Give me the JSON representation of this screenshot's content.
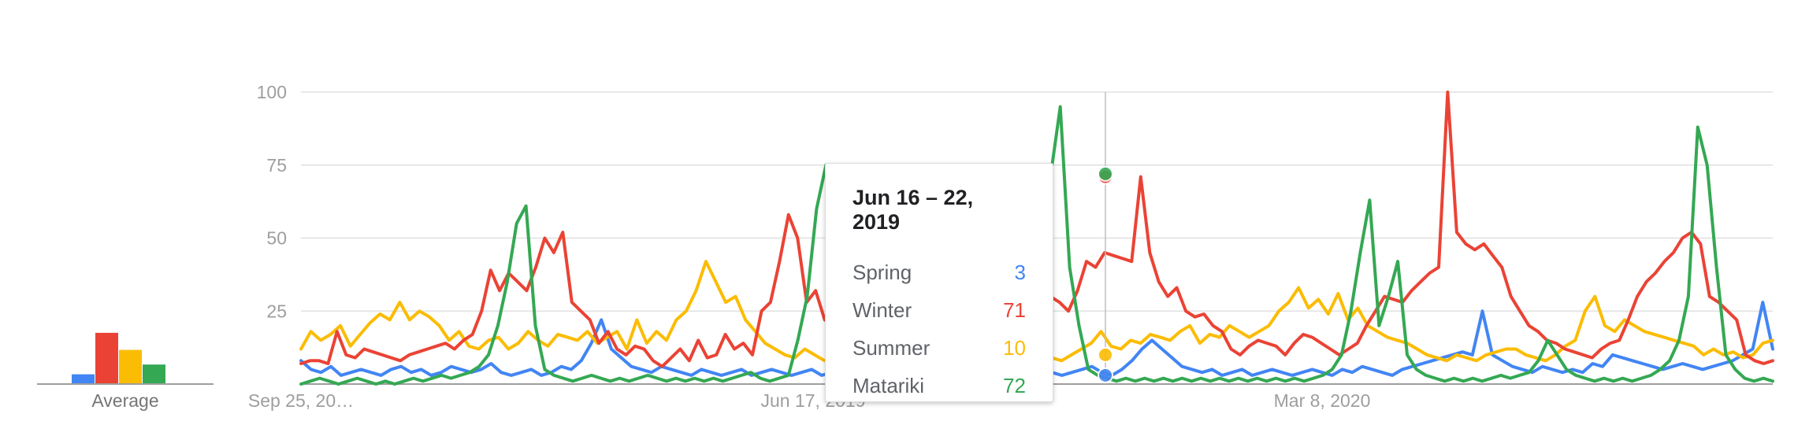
{
  "chart_data": {
    "type": "line",
    "x_ticks": [
      "Sep 25, 20…",
      "Jun 17, 2019",
      "Mar 8, 2020"
    ],
    "y_ticks": [
      100,
      75,
      50,
      25
    ],
    "ylim": [
      0,
      100
    ],
    "grid": true,
    "average": {
      "label": "Average",
      "values": [
        4,
        21,
        14,
        8
      ]
    },
    "series": [
      {
        "name": "Spring",
        "color": "#4285f4",
        "values": [
          8,
          5,
          4,
          6,
          3,
          4,
          5,
          4,
          3,
          5,
          6,
          4,
          5,
          3,
          4,
          6,
          5,
          4,
          5,
          7,
          4,
          3,
          4,
          5,
          3,
          4,
          6,
          5,
          8,
          14,
          22,
          12,
          9,
          6,
          5,
          4,
          6,
          5,
          4,
          3,
          5,
          4,
          3,
          4,
          5,
          3,
          4,
          5,
          4,
          3,
          4,
          5,
          3,
          4,
          5,
          4,
          6,
          5,
          4,
          3,
          5,
          6,
          4,
          5,
          3,
          4,
          5,
          6,
          4,
          3,
          4,
          5,
          4,
          3,
          5,
          4,
          3,
          4,
          5,
          6,
          4,
          3,
          5,
          8,
          12,
          15,
          12,
          9,
          6,
          5,
          4,
          5,
          3,
          4,
          5,
          3,
          4,
          5,
          4,
          3,
          4,
          5,
          4,
          3,
          5,
          4,
          6,
          5,
          4,
          3,
          5,
          6,
          7,
          8,
          9,
          10,
          11,
          10,
          25,
          10,
          8,
          6,
          5,
          4,
          6,
          5,
          4,
          5,
          4,
          7,
          6,
          10,
          9,
          8,
          7,
          6,
          5,
          6,
          7,
          6,
          5,
          6,
          7,
          8,
          10,
          12,
          28,
          12
        ]
      },
      {
        "name": "Winter",
        "color": "#ea4335",
        "values": [
          7,
          8,
          8,
          7,
          18,
          10,
          9,
          12,
          11,
          10,
          9,
          8,
          10,
          11,
          12,
          13,
          14,
          12,
          15,
          17,
          25,
          39,
          32,
          38,
          35,
          32,
          40,
          50,
          45,
          52,
          28,
          25,
          22,
          14,
          18,
          12,
          10,
          13,
          12,
          8,
          6,
          9,
          12,
          8,
          15,
          9,
          10,
          17,
          12,
          14,
          10,
          25,
          28,
          42,
          58,
          50,
          28,
          32,
          22,
          20,
          24,
          30,
          38,
          25,
          28,
          27,
          40,
          43,
          45,
          47,
          44,
          52,
          50,
          48,
          35,
          25,
          30,
          42,
          40,
          37,
          35,
          26,
          22,
          30,
          28,
          25,
          32,
          42,
          40,
          45,
          44,
          43,
          42,
          71,
          45,
          35,
          30,
          33,
          25,
          23,
          24,
          20,
          18,
          12,
          10,
          13,
          15,
          14,
          13,
          10,
          14,
          17,
          16,
          14,
          12,
          10,
          12,
          14,
          20,
          25,
          30,
          29,
          28,
          32,
          35,
          38,
          40,
          100,
          52,
          48,
          46,
          48,
          44,
          40,
          30,
          25,
          20,
          18,
          15,
          14,
          12,
          11,
          10,
          9,
          12,
          14,
          15,
          22,
          30,
          35,
          38,
          42,
          45,
          50,
          52,
          48,
          30,
          28,
          25,
          22,
          10,
          8,
          7,
          8
        ]
      },
      {
        "name": "Summer",
        "color": "#fbbc04",
        "values": [
          12,
          18,
          15,
          17,
          20,
          13,
          17,
          21,
          24,
          22,
          28,
          22,
          25,
          23,
          20,
          15,
          18,
          13,
          12,
          15,
          16,
          12,
          14,
          18,
          15,
          13,
          17,
          16,
          15,
          18,
          14,
          16,
          18,
          12,
          22,
          14,
          18,
          15,
          22,
          25,
          32,
          42,
          35,
          28,
          30,
          22,
          18,
          14,
          12,
          10,
          9,
          12,
          10,
          8,
          9,
          11,
          8,
          9,
          10,
          14,
          12,
          15,
          18,
          15,
          13,
          16,
          20,
          24,
          30,
          35,
          25,
          20,
          18,
          15,
          12,
          10,
          9,
          8,
          10,
          12,
          14,
          18,
          13,
          12,
          15,
          14,
          17,
          16,
          15,
          18,
          20,
          14,
          17,
          16,
          20,
          18,
          16,
          18,
          20,
          25,
          28,
          33,
          26,
          29,
          24,
          31,
          22,
          26,
          20,
          18,
          16,
          15,
          14,
          12,
          10,
          9,
          8,
          10,
          9,
          8,
          10,
          11,
          12,
          12,
          10,
          9,
          8,
          10,
          13,
          15,
          25,
          30,
          20,
          18,
          22,
          20,
          18,
          17,
          16,
          15,
          14,
          13,
          10,
          12,
          10,
          11,
          9,
          10,
          14,
          15
        ]
      },
      {
        "name": "Matariki",
        "color": "#34a853",
        "values": [
          0,
          1,
          2,
          1,
          0,
          1,
          2,
          1,
          0,
          1,
          0,
          1,
          2,
          1,
          2,
          3,
          2,
          3,
          4,
          6,
          10,
          20,
          35,
          55,
          61,
          20,
          5,
          3,
          2,
          1,
          2,
          3,
          2,
          1,
          2,
          1,
          2,
          3,
          2,
          1,
          2,
          1,
          2,
          1,
          2,
          1,
          2,
          3,
          4,
          2,
          1,
          2,
          3,
          15,
          30,
          60,
          75,
          45,
          10,
          3,
          2,
          1,
          2,
          1,
          2,
          1,
          2,
          1,
          2,
          1,
          2,
          1,
          2,
          1,
          2,
          3,
          4,
          5,
          15,
          42,
          72,
          95,
          40,
          20,
          5,
          3,
          2,
          1,
          2,
          1,
          2,
          1,
          2,
          1,
          2,
          1,
          2,
          1,
          2,
          1,
          2,
          1,
          2,
          1,
          2,
          1,
          2,
          1,
          2,
          3,
          5,
          10,
          25,
          45,
          63,
          20,
          30,
          42,
          10,
          5,
          3,
          2,
          1,
          2,
          1,
          2,
          1,
          2,
          3,
          2,
          3,
          4,
          8,
          15,
          10,
          5,
          3,
          2,
          1,
          2,
          1,
          2,
          1,
          2,
          3,
          5,
          8,
          15,
          30,
          88,
          75,
          40,
          10,
          5,
          2,
          1,
          2,
          1
        ]
      }
    ],
    "tooltip": {
      "title": "Jun 16 – 22, 2019",
      "rows": [
        {
          "name": "Spring",
          "value": "3",
          "color": "#4285f4"
        },
        {
          "name": "Winter",
          "value": "71",
          "color": "#ea4335"
        },
        {
          "name": "Summer",
          "value": "10",
          "color": "#fbbc04"
        },
        {
          "name": "Matariki",
          "value": "72",
          "color": "#34a853"
        }
      ]
    }
  }
}
